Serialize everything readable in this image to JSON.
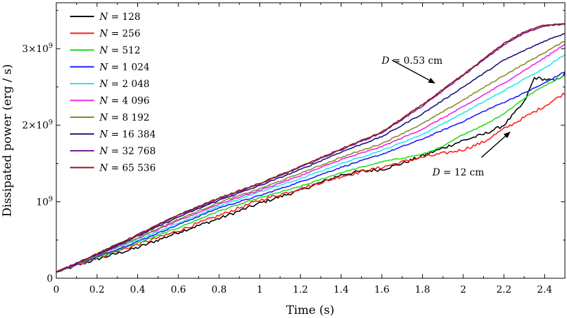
{
  "chart_data": {
    "type": "line",
    "title": "",
    "xlabel": "Time (s)",
    "ylabel": "Dissipated power (erg / s)",
    "xlim": [
      0,
      2.5
    ],
    "ylim": [
      0,
      3600000000.0
    ],
    "grid": false,
    "legend_position": "top-left",
    "x_ticks": [
      {
        "value": 0,
        "label": "0"
      },
      {
        "value": 0.2,
        "label": "0.2"
      },
      {
        "value": 0.4,
        "label": "0.4"
      },
      {
        "value": 0.6,
        "label": "0.6"
      },
      {
        "value": 0.8,
        "label": "0.8"
      },
      {
        "value": 1,
        "label": "1"
      },
      {
        "value": 1.2,
        "label": "1.2"
      },
      {
        "value": 1.4,
        "label": "1.4"
      },
      {
        "value": 1.6,
        "label": "1.6"
      },
      {
        "value": 1.8,
        "label": "1.8"
      },
      {
        "value": 2,
        "label": "2"
      },
      {
        "value": 2.2,
        "label": "2.2"
      },
      {
        "value": 2.4,
        "label": "2.4"
      }
    ],
    "y_ticks": [
      {
        "value": 0,
        "base": "0",
        "exp": ""
      },
      {
        "value": 1000000000.0,
        "base": "10",
        "exp": "9"
      },
      {
        "value": 2000000000.0,
        "base": "2×10",
        "exp": "9"
      },
      {
        "value": 3000000000.0,
        "base": "3×10",
        "exp": "9"
      }
    ],
    "series": [
      {
        "name": "128",
        "color": "#000000",
        "x": [
          0,
          0.2,
          0.4,
          0.6,
          0.8,
          1.0,
          1.2,
          1.4,
          1.5,
          1.6,
          1.7,
          1.8,
          1.9,
          2.0,
          2.1,
          2.2,
          2.3,
          2.35,
          2.4,
          2.45,
          2.5
        ],
        "y": [
          80000000.0,
          250000000.0,
          400000000.0,
          600000000.0,
          780000000.0,
          980000000.0,
          1150000000.0,
          1350000000.0,
          1400000000.0,
          1420000000.0,
          1500000000.0,
          1600000000.0,
          1700000000.0,
          1800000000.0,
          1880000000.0,
          2000000000.0,
          2300000000.0,
          2620000000.0,
          2600000000.0,
          2580000000.0,
          2670000000.0
        ]
      },
      {
        "name": "256",
        "color": "#ff1a1a",
        "x": [
          0,
          0.2,
          0.4,
          0.6,
          0.8,
          1.0,
          1.2,
          1.4,
          1.6,
          1.7,
          1.8,
          1.9,
          2.0,
          2.1,
          2.2,
          2.3,
          2.4,
          2.5
        ],
        "y": [
          80000000.0,
          270000000.0,
          440000000.0,
          620000000.0,
          820000000.0,
          1020000000.0,
          1170000000.0,
          1330000000.0,
          1450000000.0,
          1520000000.0,
          1580000000.0,
          1630000000.0,
          1680000000.0,
          1780000000.0,
          1950000000.0,
          2100000000.0,
          2250000000.0,
          2420000000.0
        ]
      },
      {
        "name": "512",
        "color": "#22dd22",
        "x": [
          0,
          0.2,
          0.4,
          0.6,
          0.8,
          1.0,
          1.2,
          1.4,
          1.6,
          1.8,
          1.9,
          2.0,
          2.1,
          2.2,
          2.3,
          2.4,
          2.5
        ],
        "y": [
          80000000.0,
          270000000.0,
          460000000.0,
          660000000.0,
          880000000.0,
          1050000000.0,
          1200000000.0,
          1380000000.0,
          1520000000.0,
          1620000000.0,
          1720000000.0,
          1880000000.0,
          2000000000.0,
          2150000000.0,
          2350000000.0,
          2520000000.0,
          2650000000.0
        ]
      },
      {
        "name": "1 024",
        "color": "#1a1aff",
        "x": [
          0,
          0.2,
          0.4,
          0.6,
          0.8,
          1.0,
          1.2,
          1.4,
          1.6,
          1.8,
          2.0,
          2.1,
          2.2,
          2.3,
          2.4,
          2.5
        ],
        "y": [
          80000000.0,
          280000000.0,
          480000000.0,
          700000000.0,
          920000000.0,
          1080000000.0,
          1260000000.0,
          1450000000.0,
          1620000000.0,
          1820000000.0,
          2050000000.0,
          2180000000.0,
          2300000000.0,
          2420000000.0,
          2550000000.0,
          2700000000.0
        ]
      },
      {
        "name": "2 048",
        "color": "#22e8e8",
        "x": [
          0,
          0.2,
          0.4,
          0.6,
          0.8,
          1.0,
          1.2,
          1.4,
          1.6,
          1.8,
          2.0,
          2.2,
          2.4,
          2.5
        ],
        "y": [
          80000000.0,
          300000000.0,
          500000000.0,
          720000000.0,
          940000000.0,
          1130000000.0,
          1300000000.0,
          1500000000.0,
          1670000000.0,
          1880000000.0,
          2160000000.0,
          2450000000.0,
          2750000000.0,
          2920000000.0
        ]
      },
      {
        "name": "4 096",
        "color": "#ee22ee",
        "x": [
          0,
          0.2,
          0.4,
          0.6,
          0.8,
          1.0,
          1.2,
          1.4,
          1.6,
          1.8,
          2.0,
          2.2,
          2.4,
          2.5
        ],
        "y": [
          80000000.0,
          300000000.0,
          520000000.0,
          750000000.0,
          970000000.0,
          1150000000.0,
          1340000000.0,
          1550000000.0,
          1720000000.0,
          1950000000.0,
          2240000000.0,
          2550000000.0,
          2880000000.0,
          3060000000.0
        ]
      },
      {
        "name": "8 192",
        "color": "#8a8a2a",
        "x": [
          0,
          0.2,
          0.4,
          0.6,
          0.8,
          1.0,
          1.2,
          1.4,
          1.6,
          1.8,
          2.0,
          2.2,
          2.4,
          2.5
        ],
        "y": [
          80000000.0,
          300000000.0,
          530000000.0,
          770000000.0,
          990000000.0,
          1170000000.0,
          1370000000.0,
          1580000000.0,
          1760000000.0,
          2020000000.0,
          2330000000.0,
          2650000000.0,
          2950000000.0,
          3100000000.0
        ]
      },
      {
        "name": "16 384",
        "color": "#141478",
        "x": [
          0,
          0.2,
          0.4,
          0.6,
          0.8,
          1.0,
          1.2,
          1.4,
          1.6,
          1.8,
          2.0,
          2.2,
          2.4,
          2.5
        ],
        "y": [
          80000000.0,
          310000000.0,
          550000000.0,
          800000000.0,
          1020000000.0,
          1210000000.0,
          1420000000.0,
          1650000000.0,
          1850000000.0,
          2150000000.0,
          2500000000.0,
          2850000000.0,
          3100000000.0,
          3200000000.0
        ]
      },
      {
        "name": "32 768",
        "color": "#7a1a9a",
        "x": [
          0,
          0.2,
          0.4,
          0.6,
          0.8,
          1.0,
          1.2,
          1.4,
          1.6,
          1.8,
          2.0,
          2.2,
          2.3,
          2.4,
          2.5
        ],
        "y": [
          80000000.0,
          320000000.0,
          560000000.0,
          820000000.0,
          1040000000.0,
          1230000000.0,
          1450000000.0,
          1680000000.0,
          1900000000.0,
          2250000000.0,
          2650000000.0,
          3050000000.0,
          3200000000.0,
          3300000000.0,
          3320000000.0
        ]
      },
      {
        "name": "65 536",
        "color": "#8b1a1a",
        "x": [
          0,
          0.2,
          0.4,
          0.6,
          0.8,
          1.0,
          1.2,
          1.4,
          1.6,
          1.8,
          2.0,
          2.2,
          2.3,
          2.4,
          2.5
        ],
        "y": [
          80000000.0,
          320000000.0,
          570000000.0,
          830000000.0,
          1050000000.0,
          1240000000.0,
          1460000000.0,
          1690000000.0,
          1910000000.0,
          2270000000.0,
          2660000000.0,
          3070000000.0,
          3220000000.0,
          3310000000.0,
          3330000000.0
        ]
      }
    ],
    "annotations": [
      {
        "text_pre": "D",
        "text_post": " = 0.53 cm",
        "arrow_from": [
          1.65,
          2850000000.0
        ],
        "arrow_to": [
          1.86,
          2550000000.0
        ]
      },
      {
        "text_pre": "D",
        "text_post": " = 12 cm",
        "arrow_from": [
          2.09,
          1580000000.0
        ],
        "arrow_to": [
          2.23,
          1910000000.0
        ]
      }
    ]
  }
}
